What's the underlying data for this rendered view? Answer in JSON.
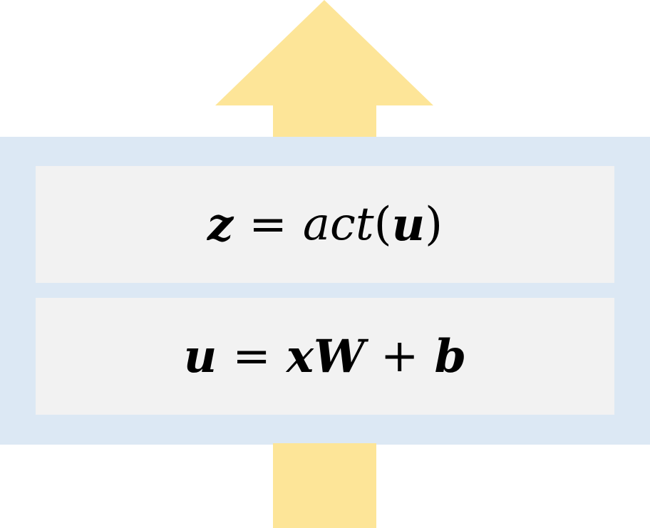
{
  "colors": {
    "arrow": "#fde598",
    "layer_background": "#dce8f4",
    "formula_background": "#f2f2f2"
  },
  "icons": {
    "flow_arrow": "up-arrow-icon"
  },
  "formulas": {
    "activation": {
      "lhs": "z",
      "op": "=",
      "func": "act",
      "open": "(",
      "arg": "u",
      "close": ")"
    },
    "linear": {
      "lhs": "u",
      "op": "=",
      "x": "x",
      "w": "W",
      "plus": "+",
      "b": "b"
    }
  }
}
